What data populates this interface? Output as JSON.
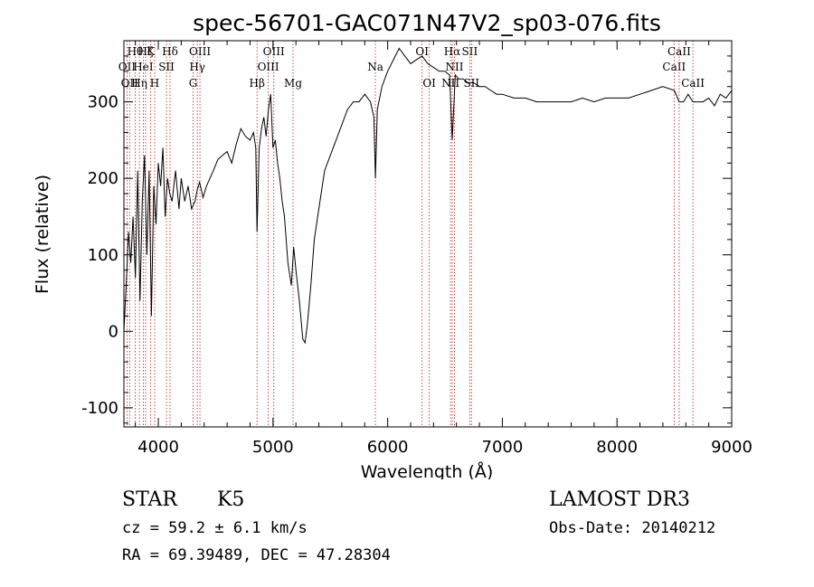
{
  "chart_data": {
    "type": "line",
    "title": "spec-56701-GAC071N47V2_sp03-076.fits",
    "xlabel": "Wavelength (Å)",
    "ylabel": "Flux (relative)",
    "xlim": [
      3700,
      9000
    ],
    "ylim": [
      -125,
      380
    ],
    "xticks": [
      4000,
      5000,
      6000,
      7000,
      8000,
      9000
    ],
    "yticks": [
      -100,
      0,
      100,
      200,
      300
    ],
    "grid": false,
    "line_color": "#000000",
    "marker_color": "#b22222",
    "series": [
      {
        "x": [
          3700,
          3720,
          3740,
          3760,
          3780,
          3800,
          3820,
          3840,
          3860,
          3880,
          3900,
          3920,
          3940,
          3960,
          3980,
          4000,
          4020,
          4040,
          4060,
          4080,
          4100,
          4120,
          4150,
          4180,
          4200,
          4230,
          4260,
          4290,
          4320,
          4340,
          4360,
          4390,
          4420,
          4450,
          4480,
          4520,
          4560,
          4600,
          4640,
          4680,
          4720,
          4760,
          4800,
          4830,
          4850,
          4861,
          4880,
          4900,
          4920,
          4940,
          4960,
          4980,
          5000,
          5020,
          5040,
          5060,
          5080,
          5100,
          5130,
          5160,
          5180,
          5200,
          5230,
          5260,
          5280,
          5300,
          5330,
          5360,
          5400,
          5450,
          5500,
          5550,
          5600,
          5650,
          5700,
          5750,
          5800,
          5850,
          5880,
          5893,
          5910,
          5950,
          6000,
          6050,
          6100,
          6150,
          6200,
          6250,
          6300,
          6350,
          6400,
          6450,
          6500,
          6540,
          6563,
          6590,
          6620,
          6660,
          6700,
          6750,
          6800,
          6850,
          6900,
          6950,
          7000,
          7100,
          7200,
          7300,
          7400,
          7500,
          7600,
          7700,
          7800,
          7900,
          8000,
          8100,
          8200,
          8300,
          8400,
          8500,
          8542,
          8580,
          8620,
          8662,
          8700,
          8750,
          8800,
          8850,
          8900,
          8950,
          9000
        ],
        "y": [
          0,
          60,
          130,
          90,
          150,
          70,
          210,
          40,
          170,
          230,
          100,
          210,
          20,
          190,
          140,
          220,
          190,
          240,
          150,
          200,
          180,
          170,
          210,
          160,
          200,
          170,
          190,
          160,
          170,
          185,
          195,
          175,
          190,
          200,
          210,
          225,
          230,
          235,
          220,
          245,
          265,
          255,
          250,
          260,
          240,
          130,
          240,
          265,
          280,
          255,
          290,
          310,
          240,
          250,
          220,
          200,
          170,
          150,
          90,
          60,
          110,
          80,
          40,
          -10,
          -15,
          10,
          60,
          120,
          160,
          210,
          230,
          250,
          270,
          290,
          300,
          300,
          310,
          300,
          280,
          200,
          290,
          320,
          340,
          355,
          370,
          360,
          350,
          355,
          360,
          350,
          345,
          340,
          340,
          335,
          250,
          335,
          330,
          330,
          325,
          325,
          320,
          320,
          315,
          310,
          310,
          305,
          305,
          300,
          300,
          300,
          300,
          305,
          300,
          305,
          305,
          305,
          310,
          315,
          320,
          315,
          300,
          300,
          310,
          300,
          300,
          300,
          305,
          295,
          310,
          305,
          315
        ]
      }
    ],
    "line_markers": [
      {
        "wavelength": 3727,
        "label": "OII",
        "row": 2
      },
      {
        "wavelength": 3750,
        "label": "OII",
        "row": 3
      },
      {
        "wavelength": 3798,
        "label": "Hθ",
        "row": 1
      },
      {
        "wavelength": 3835,
        "label": "Hη",
        "row": 3
      },
      {
        "wavelength": 3869,
        "label": "HeI",
        "row": 2
      },
      {
        "wavelength": 3889,
        "label": "Hζ",
        "row": 1
      },
      {
        "wavelength": 3934,
        "label": "K",
        "row": 1
      },
      {
        "wavelength": 3968,
        "label": "H",
        "row": 3
      },
      {
        "wavelength": 4071,
        "label": "SII",
        "row": 2
      },
      {
        "wavelength": 4102,
        "label": "Hδ",
        "row": 1
      },
      {
        "wavelength": 4304,
        "label": "G",
        "row": 3
      },
      {
        "wavelength": 4340,
        "label": "Hγ",
        "row": 2
      },
      {
        "wavelength": 4363,
        "label": "OIII",
        "row": 1
      },
      {
        "wavelength": 4861,
        "label": "Hβ",
        "row": 3
      },
      {
        "wavelength": 4959,
        "label": "OIII",
        "row": 2
      },
      {
        "wavelength": 5007,
        "label": "OIII",
        "row": 1
      },
      {
        "wavelength": 5175,
        "label": "Mg",
        "row": 3
      },
      {
        "wavelength": 5893,
        "label": "Na",
        "row": 2
      },
      {
        "wavelength": 6300,
        "label": "OI",
        "row": 1
      },
      {
        "wavelength": 6363,
        "label": "OI",
        "row": 3
      },
      {
        "wavelength": 6548,
        "label": "NII",
        "row": 3
      },
      {
        "wavelength": 6563,
        "label": "Hα",
        "row": 1
      },
      {
        "wavelength": 6583,
        "label": "NII",
        "row": 2
      },
      {
        "wavelength": 6716,
        "label": "SII",
        "row": 1
      },
      {
        "wavelength": 6731,
        "label": "SII",
        "row": 3
      },
      {
        "wavelength": 8498,
        "label": "CaII",
        "row": 2
      },
      {
        "wavelength": 8542,
        "label": "CaII",
        "row": 1
      },
      {
        "wavelength": 8662,
        "label": "CaII",
        "row": 3
      }
    ]
  },
  "info": {
    "object_class": "STAR",
    "subclass": "K5",
    "survey": "LAMOST DR3",
    "redshift": "cz = 59.2 ± 6.1 km/s",
    "obs_date": "Obs-Date: 20140212",
    "coords": "RA =  69.39489, DEC =  47.28304"
  }
}
